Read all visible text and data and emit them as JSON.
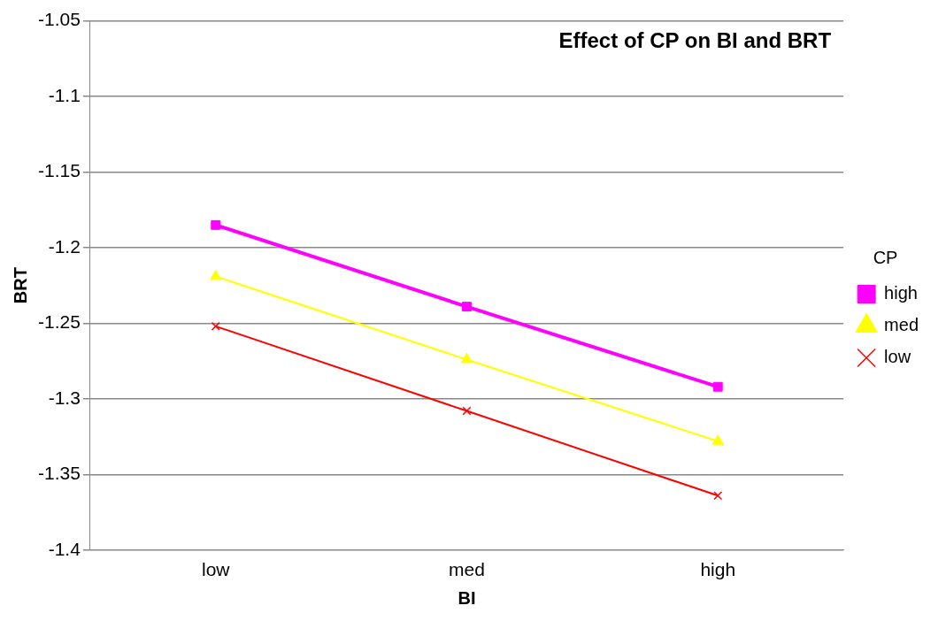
{
  "chart_data": {
    "type": "line",
    "title": "Effect of CP on BI and BRT",
    "xlabel": "BI",
    "ylabel": "BRT",
    "legend_title": "CP",
    "categories": [
      "low",
      "med",
      "high"
    ],
    "series": [
      {
        "name": "high",
        "color": "#ff00ff",
        "marker": "square",
        "values": [
          -1.185,
          -1.239,
          -1.292
        ]
      },
      {
        "name": "med",
        "color": "#ffff00",
        "marker": "triangle",
        "values": [
          -1.219,
          -1.274,
          -1.328
        ]
      },
      {
        "name": "low",
        "color": "#ff0000",
        "marker": "cross",
        "values": [
          -1.252,
          -1.308,
          -1.364
        ]
      }
    ],
    "ylim": [
      -1.4,
      -1.05
    ],
    "yticks": [
      -1.4,
      -1.35,
      -1.3,
      -1.25,
      -1.2,
      -1.15,
      -1.1,
      -1.05
    ],
    "grid": "y",
    "legend": "right"
  }
}
